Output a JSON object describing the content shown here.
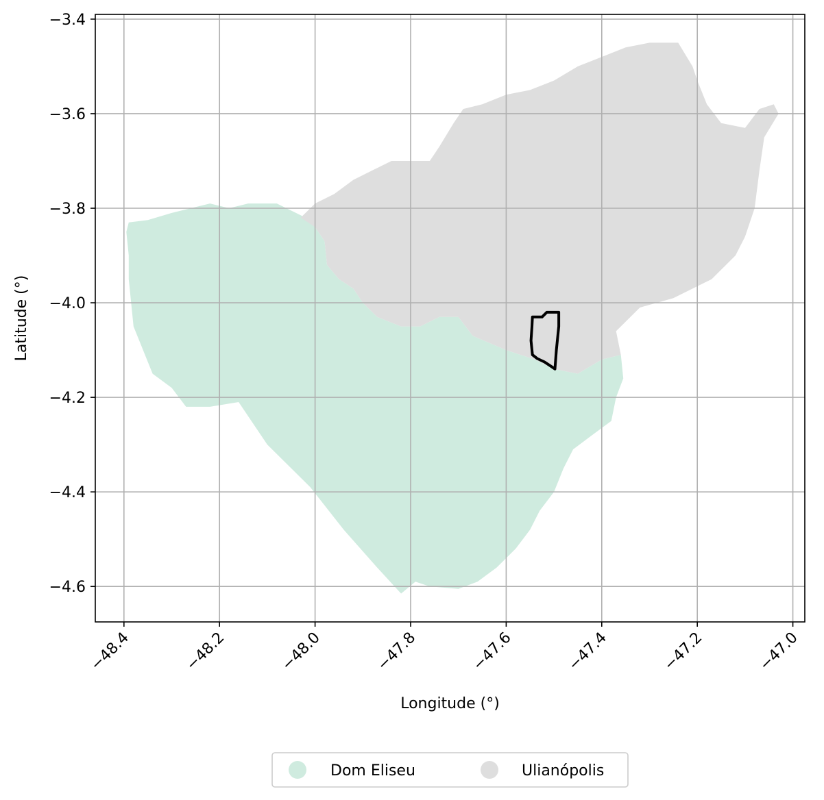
{
  "chart_data": {
    "type": "map",
    "title": "",
    "xlabel": "Longitude (°)",
    "ylabel": "Latitude (°)",
    "xlim": [
      -48.46,
      -46.975
    ],
    "ylim": [
      -4.675,
      -3.39
    ],
    "x_ticks": [
      -48.4,
      -48.2,
      -48.0,
      -47.8,
      -47.6,
      -47.4,
      -47.2,
      -47.0
    ],
    "x_tick_labels": [
      "−48.4",
      "−48.2",
      "−48.0",
      "−47.8",
      "−47.6",
      "−47.4",
      "−47.2",
      "−47.0"
    ],
    "y_ticks": [
      -3.4,
      -3.6,
      -3.8,
      -4.0,
      -4.2,
      -4.4,
      -4.6
    ],
    "y_tick_labels": [
      "−3.4",
      "−3.6",
      "−3.8",
      "−4.0",
      "−4.2",
      "−4.4",
      "−4.6"
    ],
    "grid": true,
    "legend_position": "bottom-center",
    "regions": [
      {
        "name": "Dom Eliseu",
        "color": "#cfebdf",
        "polygon": [
          [
            -48.39,
            -3.83
          ],
          [
            -48.35,
            -3.825
          ],
          [
            -48.3,
            -3.81
          ],
          [
            -48.26,
            -3.8
          ],
          [
            -48.22,
            -3.79
          ],
          [
            -48.18,
            -3.8
          ],
          [
            -48.14,
            -3.79
          ],
          [
            -48.11,
            -3.79
          ],
          [
            -48.08,
            -3.79
          ],
          [
            -48.06,
            -3.8
          ],
          [
            -48.02,
            -3.82
          ],
          [
            -48.0,
            -3.84
          ],
          [
            -47.98,
            -3.87
          ],
          [
            -47.975,
            -3.92
          ],
          [
            -47.95,
            -3.95
          ],
          [
            -47.92,
            -3.97
          ],
          [
            -47.9,
            -4.0
          ],
          [
            -47.87,
            -4.03
          ],
          [
            -47.82,
            -4.05
          ],
          [
            -47.78,
            -4.05
          ],
          [
            -47.74,
            -4.03
          ],
          [
            -47.7,
            -4.03
          ],
          [
            -47.67,
            -4.07
          ],
          [
            -47.6,
            -4.1
          ],
          [
            -47.54,
            -4.12
          ],
          [
            -47.5,
            -4.14
          ],
          [
            -47.45,
            -4.15
          ],
          [
            -47.4,
            -4.12
          ],
          [
            -47.36,
            -4.11
          ],
          [
            -47.355,
            -4.16
          ],
          [
            -47.37,
            -4.2
          ],
          [
            -47.38,
            -4.25
          ],
          [
            -47.42,
            -4.28
          ],
          [
            -47.46,
            -4.31
          ],
          [
            -47.48,
            -4.35
          ],
          [
            -47.5,
            -4.4
          ],
          [
            -47.53,
            -4.44
          ],
          [
            -47.55,
            -4.48
          ],
          [
            -47.58,
            -4.52
          ],
          [
            -47.62,
            -4.56
          ],
          [
            -47.66,
            -4.59
          ],
          [
            -47.7,
            -4.605
          ],
          [
            -47.76,
            -4.6
          ],
          [
            -47.79,
            -4.59
          ],
          [
            -47.82,
            -4.615
          ],
          [
            -47.87,
            -4.56
          ],
          [
            -47.94,
            -4.48
          ],
          [
            -48.01,
            -4.39
          ],
          [
            -48.1,
            -4.3
          ],
          [
            -48.16,
            -4.21
          ],
          [
            -48.22,
            -4.22
          ],
          [
            -48.27,
            -4.22
          ],
          [
            -48.3,
            -4.18
          ],
          [
            -48.34,
            -4.15
          ],
          [
            -48.36,
            -4.1
          ],
          [
            -48.38,
            -4.05
          ],
          [
            -48.385,
            -4.0
          ],
          [
            -48.39,
            -3.95
          ],
          [
            -48.39,
            -3.9
          ],
          [
            -48.395,
            -3.85
          ]
        ]
      },
      {
        "name": "Ulianópolis",
        "color": "#dedede",
        "polygon": [
          [
            -48.03,
            -3.82
          ],
          [
            -48.0,
            -3.79
          ],
          [
            -47.96,
            -3.77
          ],
          [
            -47.92,
            -3.74
          ],
          [
            -47.88,
            -3.72
          ],
          [
            -47.84,
            -3.7
          ],
          [
            -47.8,
            -3.7
          ],
          [
            -47.76,
            -3.7
          ],
          [
            -47.74,
            -3.67
          ],
          [
            -47.71,
            -3.62
          ],
          [
            -47.69,
            -3.59
          ],
          [
            -47.65,
            -3.58
          ],
          [
            -47.6,
            -3.56
          ],
          [
            -47.55,
            -3.55
          ],
          [
            -47.5,
            -3.53
          ],
          [
            -47.45,
            -3.5
          ],
          [
            -47.4,
            -3.48
          ],
          [
            -47.35,
            -3.46
          ],
          [
            -47.3,
            -3.45
          ],
          [
            -47.24,
            -3.45
          ],
          [
            -47.21,
            -3.5
          ],
          [
            -47.2,
            -3.53
          ],
          [
            -47.18,
            -3.58
          ],
          [
            -47.15,
            -3.62
          ],
          [
            -47.1,
            -3.63
          ],
          [
            -47.07,
            -3.59
          ],
          [
            -47.04,
            -3.58
          ],
          [
            -47.03,
            -3.6
          ],
          [
            -47.06,
            -3.65
          ],
          [
            -47.07,
            -3.72
          ],
          [
            -47.08,
            -3.8
          ],
          [
            -47.1,
            -3.86
          ],
          [
            -47.12,
            -3.9
          ],
          [
            -47.17,
            -3.95
          ],
          [
            -47.25,
            -3.99
          ],
          [
            -47.32,
            -4.01
          ],
          [
            -47.37,
            -4.06
          ],
          [
            -47.36,
            -4.11
          ],
          [
            -47.4,
            -4.12
          ],
          [
            -47.45,
            -4.15
          ],
          [
            -47.5,
            -4.14
          ],
          [
            -47.54,
            -4.12
          ],
          [
            -47.6,
            -4.1
          ],
          [
            -47.67,
            -4.07
          ],
          [
            -47.7,
            -4.03
          ],
          [
            -47.74,
            -4.03
          ],
          [
            -47.78,
            -4.05
          ],
          [
            -47.82,
            -4.05
          ],
          [
            -47.87,
            -4.03
          ],
          [
            -47.9,
            -4.0
          ],
          [
            -47.92,
            -3.97
          ],
          [
            -47.95,
            -3.95
          ],
          [
            -47.975,
            -3.92
          ],
          [
            -47.98,
            -3.87
          ],
          [
            -48.0,
            -3.84
          ]
        ]
      }
    ],
    "highlight": {
      "color": "#000000",
      "polygon": [
        [
          -47.545,
          -4.03
        ],
        [
          -47.525,
          -4.03
        ],
        [
          -47.515,
          -4.02
        ],
        [
          -47.49,
          -4.02
        ],
        [
          -47.49,
          -4.05
        ],
        [
          -47.495,
          -4.1
        ],
        [
          -47.498,
          -4.14
        ],
        [
          -47.505,
          -4.135
        ],
        [
          -47.52,
          -4.125
        ],
        [
          -47.535,
          -4.118
        ],
        [
          -47.545,
          -4.11
        ],
        [
          -47.548,
          -4.08
        ],
        [
          -47.546,
          -4.05
        ]
      ]
    }
  },
  "legend": {
    "items": [
      {
        "label": "Dom Eliseu",
        "color": "#cfebdf"
      },
      {
        "label": "Ulianópolis",
        "color": "#dedede"
      }
    ]
  }
}
